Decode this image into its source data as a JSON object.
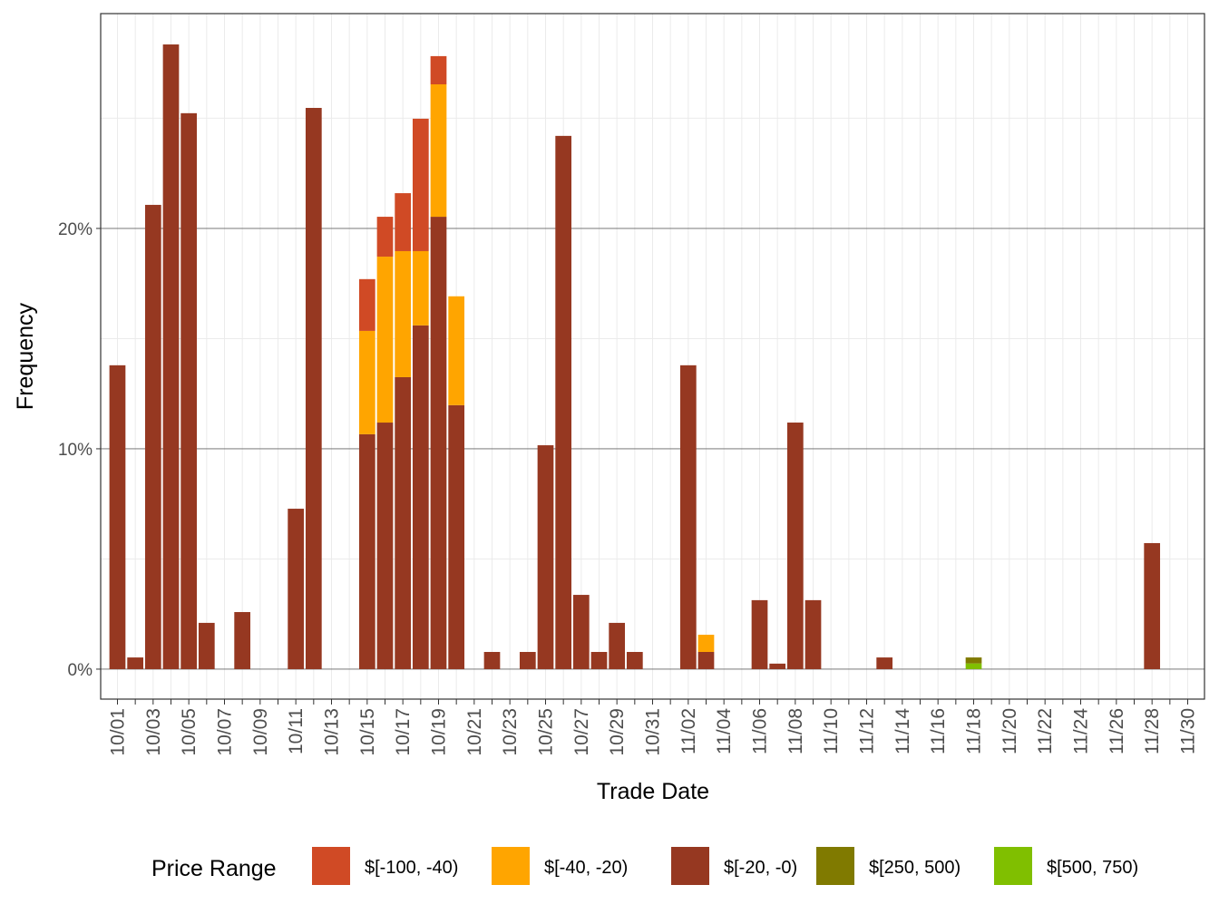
{
  "chart_data": {
    "type": "stacked_bar",
    "x_label": "Trade Date",
    "y_label": "Frequency",
    "legend_title": "Price Range",
    "legend_position": "bottom",
    "grid": true,
    "categories": [
      "10/01",
      null,
      "10/03",
      null,
      "10/05",
      null,
      "10/07",
      null,
      "10/09",
      null,
      "10/11",
      null,
      "10/13",
      null,
      "10/15",
      null,
      "10/17",
      null,
      "10/19",
      null,
      "10/21",
      null,
      "10/23",
      null,
      "10/25",
      null,
      "10/27",
      null,
      "10/29",
      null,
      "10/31",
      null,
      "11/02",
      null,
      "11/04",
      null,
      "11/06",
      null,
      "11/08",
      null,
      "11/10",
      null,
      "11/12",
      null,
      "11/14",
      null,
      "11/16",
      null,
      "11/18",
      null,
      "11/20",
      null,
      "11/22",
      null,
      "11/24",
      null,
      "11/26",
      null,
      "11/28",
      null,
      "11/30"
    ],
    "ylim": [
      -1.36,
      29.75
    ],
    "yticks": [
      {
        "value": 0,
        "label": "0%"
      },
      {
        "value": 10,
        "label": "10%"
      },
      {
        "value": 20,
        "label": "20%"
      }
    ],
    "minor_yticks": [
      5,
      15,
      25
    ],
    "series": [
      {
        "name": "$[-100, -40)",
        "color": "#d04a25",
        "values": [
          null,
          null,
          null,
          null,
          null,
          null,
          null,
          null,
          null,
          null,
          null,
          null,
          null,
          null,
          2.35,
          1.81,
          2.63,
          6.01,
          1.28,
          null,
          null,
          null,
          null,
          null,
          null,
          null,
          null,
          null,
          null,
          null,
          null,
          null,
          null,
          null,
          null,
          null,
          null,
          null,
          null,
          null,
          null,
          null,
          null,
          null,
          null,
          null,
          null,
          null,
          null,
          null,
          null,
          null,
          null,
          null,
          null,
          null,
          null,
          null,
          null,
          null,
          null
        ]
      },
      {
        "name": "$[-40, -20)",
        "color": "#ffa500",
        "values": [
          null,
          null,
          null,
          null,
          null,
          null,
          null,
          null,
          null,
          null,
          null,
          null,
          null,
          null,
          4.69,
          7.53,
          5.72,
          3.37,
          6.01,
          4.94,
          null,
          null,
          null,
          null,
          null,
          null,
          null,
          null,
          null,
          null,
          null,
          null,
          null,
          0.78,
          null,
          null,
          null,
          null,
          null,
          null,
          null,
          null,
          null,
          null,
          null,
          null,
          null,
          null,
          null,
          null,
          null,
          null,
          null,
          null,
          null,
          null,
          null,
          null,
          null,
          null,
          null
        ]
      },
      {
        "name": "$[-20, -0)",
        "color": "#963821",
        "values": [
          13.79,
          0.53,
          21.07,
          28.35,
          25.23,
          2.1,
          null,
          2.59,
          null,
          null,
          7.28,
          25.47,
          null,
          null,
          10.66,
          11.19,
          13.25,
          15.6,
          20.53,
          11.98,
          null,
          0.78,
          null,
          0.78,
          10.16,
          24.2,
          3.37,
          0.78,
          2.1,
          0.78,
          null,
          null,
          13.79,
          0.78,
          null,
          null,
          3.13,
          0.25,
          11.19,
          3.13,
          null,
          null,
          null,
          0.53,
          null,
          null,
          null,
          null,
          null,
          null,
          null,
          null,
          null,
          null,
          null,
          null,
          null,
          null,
          5.72,
          null,
          null
        ]
      },
      {
        "name": "$[250, 500)",
        "color": "#807a00",
        "values": [
          null,
          null,
          null,
          null,
          null,
          null,
          null,
          null,
          null,
          null,
          null,
          null,
          null,
          null,
          null,
          null,
          null,
          null,
          null,
          null,
          null,
          null,
          null,
          null,
          null,
          null,
          null,
          null,
          null,
          null,
          null,
          null,
          null,
          null,
          null,
          null,
          null,
          null,
          null,
          null,
          null,
          null,
          null,
          null,
          null,
          null,
          null,
          null,
          0.27,
          null,
          null,
          null,
          null,
          null,
          null,
          null,
          null,
          null,
          null,
          null,
          null
        ]
      },
      {
        "name": "$[500, 750)",
        "color": "#80bf00",
        "values": [
          null,
          null,
          null,
          null,
          null,
          null,
          null,
          null,
          null,
          null,
          null,
          null,
          null,
          null,
          null,
          null,
          null,
          null,
          null,
          null,
          null,
          null,
          null,
          null,
          null,
          null,
          null,
          null,
          null,
          null,
          null,
          null,
          null,
          null,
          null,
          null,
          null,
          null,
          null,
          null,
          null,
          null,
          null,
          null,
          null,
          null,
          null,
          null,
          0.26,
          null,
          null,
          null,
          null,
          null,
          null,
          null,
          null,
          null,
          null,
          null,
          null
        ]
      }
    ]
  }
}
